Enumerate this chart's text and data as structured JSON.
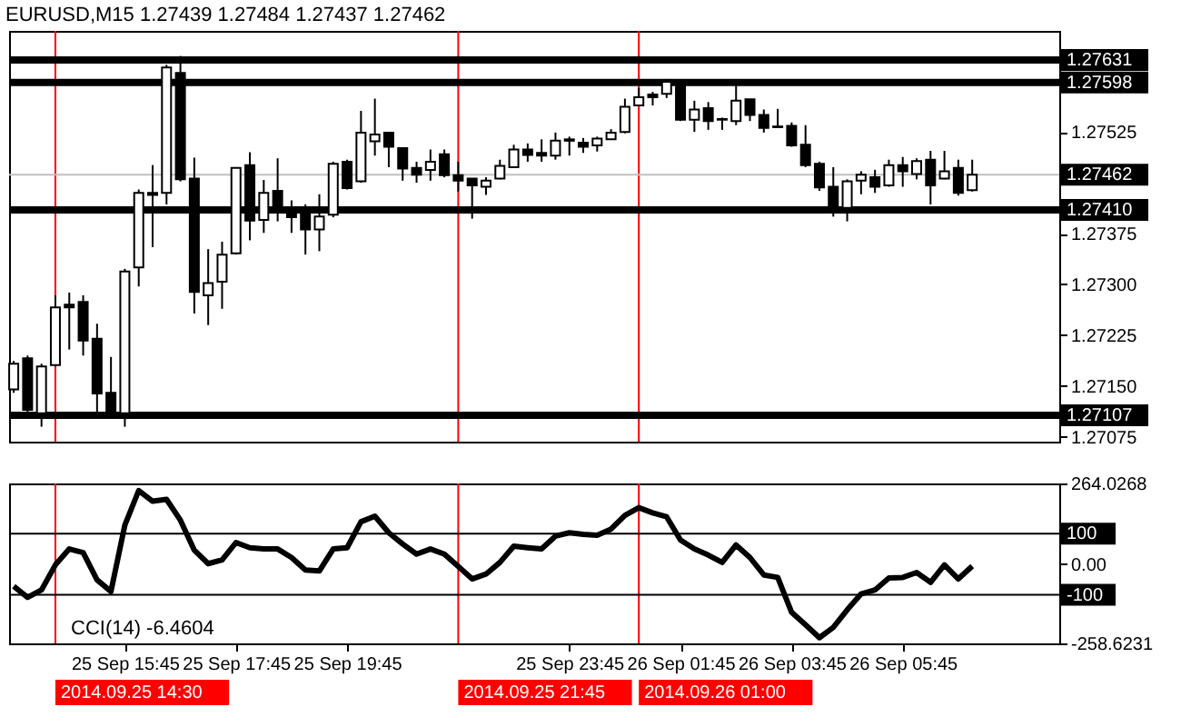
{
  "chart_data": [
    {
      "type": "candlestick",
      "title": "EURUSD,M15  1.27439 1.27484 1.27437 1.27462",
      "x": [
        "2014-09-25T13:45",
        "2014-09-25T14:00",
        "2014-09-25T14:15",
        "2014-09-25T14:30",
        "2014-09-25T14:45",
        "2014-09-25T15:00",
        "2014-09-25T15:15",
        "2014-09-25T15:30",
        "2014-09-25T15:45",
        "2014-09-25T16:00",
        "2014-09-25T16:15",
        "2014-09-25T16:30",
        "2014-09-25T16:45",
        "2014-09-25T17:00",
        "2014-09-25T17:15",
        "2014-09-25T17:30",
        "2014-09-25T17:45",
        "2014-09-25T18:00",
        "2014-09-25T18:15",
        "2014-09-25T18:30",
        "2014-09-25T18:45",
        "2014-09-25T19:00",
        "2014-09-25T19:15",
        "2014-09-25T19:30",
        "2014-09-25T19:45",
        "2014-09-25T20:00",
        "2014-09-25T20:15",
        "2014-09-25T20:30",
        "2014-09-25T20:45",
        "2014-09-25T21:00",
        "2014-09-25T21:15",
        "2014-09-25T21:30",
        "2014-09-25T21:45",
        "2014-09-25T22:00",
        "2014-09-25T22:15",
        "2014-09-25T22:30",
        "2014-09-25T22:45",
        "2014-09-25T23:00",
        "2014-09-25T23:15",
        "2014-09-25T23:30",
        "2014-09-25T23:45",
        "2014-09-26T00:00",
        "2014-09-26T00:15",
        "2014-09-26T00:30",
        "2014-09-26T00:45",
        "2014-09-26T01:00",
        "2014-09-26T01:15",
        "2014-09-26T01:30",
        "2014-09-26T01:45",
        "2014-09-26T02:00",
        "2014-09-26T02:15",
        "2014-09-26T02:30",
        "2014-09-26T02:45",
        "2014-09-26T03:00",
        "2014-09-26T03:15",
        "2014-09-26T03:30",
        "2014-09-26T03:45",
        "2014-09-26T04:00",
        "2014-09-26T04:15",
        "2014-09-26T04:30",
        "2014-09-26T04:45",
        "2014-09-26T05:00",
        "2014-09-26T05:15",
        "2014-09-26T05:30",
        "2014-09-26T05:45",
        "2014-09-26T06:00",
        "2014-09-26T06:15",
        "2014-09-26T06:30",
        "2014-09-26T06:45",
        "2014-09-26T07:00"
      ],
      "ohlc": [
        [
          1.27145,
          1.27187,
          1.2714,
          1.27183
        ],
        [
          1.27191,
          1.27195,
          1.27111,
          1.27115
        ],
        [
          1.2711,
          1.27183,
          1.2709,
          1.27179
        ],
        [
          1.27181,
          1.27284,
          1.27179,
          1.27266
        ],
        [
          1.2727,
          1.27288,
          1.27204,
          1.27266
        ],
        [
          1.27274,
          1.27284,
          1.27195,
          1.27217
        ],
        [
          1.2722,
          1.27242,
          1.27111,
          1.27139
        ],
        [
          1.2714,
          1.27193,
          1.27108,
          1.2711
        ],
        [
          1.2711,
          1.27323,
          1.2709,
          1.27319
        ],
        [
          1.27325,
          1.2744,
          1.27297,
          1.27435
        ],
        [
          1.27435,
          1.27476,
          1.27355,
          1.27432
        ],
        [
          1.27435,
          1.27624,
          1.27418,
          1.2762
        ],
        [
          1.27612,
          1.27637,
          1.27452,
          1.27455
        ],
        [
          1.27456,
          1.27487,
          1.27257,
          1.27289
        ],
        [
          1.27284,
          1.27352,
          1.2724,
          1.27302
        ],
        [
          1.27304,
          1.27363,
          1.27264,
          1.27344
        ],
        [
          1.27346,
          1.27473,
          1.27344,
          1.27472
        ],
        [
          1.27476,
          1.27495,
          1.27365,
          1.27394
        ],
        [
          1.27395,
          1.27454,
          1.27376,
          1.27435
        ],
        [
          1.27438,
          1.27486,
          1.27393,
          1.27414
        ],
        [
          1.27405,
          1.27424,
          1.27376,
          1.27399
        ],
        [
          1.27405,
          1.27418,
          1.27344,
          1.27381
        ],
        [
          1.27381,
          1.27433,
          1.27349,
          1.274
        ],
        [
          1.27403,
          1.27481,
          1.27399,
          1.27478
        ],
        [
          1.27481,
          1.27484,
          1.2744,
          1.27442
        ],
        [
          1.27452,
          1.27556,
          1.2745,
          1.27524
        ],
        [
          1.27511,
          1.27574,
          1.2749,
          1.27521
        ],
        [
          1.27524,
          1.27524,
          1.27473,
          1.27503
        ],
        [
          1.27501,
          1.27501,
          1.27453,
          1.27471
        ],
        [
          1.27472,
          1.27481,
          1.2745,
          1.27462
        ],
        [
          1.27469,
          1.27499,
          1.27453,
          1.27481
        ],
        [
          1.27492,
          1.27499,
          1.27458,
          1.27461
        ],
        [
          1.27461,
          1.27481,
          1.27437,
          1.27453
        ],
        [
          1.27456,
          1.27456,
          1.27397,
          1.27446
        ],
        [
          1.27444,
          1.27458,
          1.27432,
          1.27453
        ],
        [
          1.27456,
          1.27484,
          1.27455,
          1.27475
        ],
        [
          1.27473,
          1.27506,
          1.27472,
          1.27499
        ],
        [
          1.27499,
          1.27508,
          1.27481,
          1.27491
        ],
        [
          1.27494,
          1.27514,
          1.27481,
          1.2749
        ],
        [
          1.2749,
          1.27524,
          1.27484,
          1.27512
        ],
        [
          1.27512,
          1.27518,
          1.2749,
          1.27514
        ],
        [
          1.27509,
          1.27516,
          1.27494,
          1.27503
        ],
        [
          1.27505,
          1.27518,
          1.27496,
          1.27515
        ],
        [
          1.27514,
          1.27529,
          1.27514,
          1.27524
        ],
        [
          1.27525,
          1.27574,
          1.27523,
          1.27562
        ],
        [
          1.27564,
          1.2759,
          1.27564,
          1.27576
        ],
        [
          1.2758,
          1.27584,
          1.27564,
          1.27576
        ],
        [
          1.27581,
          1.27603,
          1.27575,
          1.27599
        ],
        [
          1.27594,
          1.27594,
          1.27541,
          1.27543
        ],
        [
          1.27543,
          1.27571,
          1.27525,
          1.27558
        ],
        [
          1.2756,
          1.27569,
          1.27528,
          1.27541
        ],
        [
          1.27544,
          1.27546,
          1.27528,
          1.27543
        ],
        [
          1.27541,
          1.27594,
          1.27535,
          1.27571
        ],
        [
          1.27573,
          1.27573,
          1.27541,
          1.2755
        ],
        [
          1.2755,
          1.27558,
          1.27524,
          1.27531
        ],
        [
          1.27533,
          1.27559,
          1.27532,
          1.27532
        ],
        [
          1.27534,
          1.27539,
          1.27503,
          1.27505
        ],
        [
          1.27506,
          1.27535,
          1.27473,
          1.27476
        ],
        [
          1.27478,
          1.27481,
          1.27438,
          1.27443
        ],
        [
          1.27444,
          1.27473,
          1.274,
          1.27413
        ],
        [
          1.27413,
          1.27455,
          1.27393,
          1.27452
        ],
        [
          1.27453,
          1.27467,
          1.27433,
          1.27462
        ],
        [
          1.27458,
          1.27469,
          1.27435,
          1.27444
        ],
        [
          1.27446,
          1.27484,
          1.27444,
          1.27476
        ],
        [
          1.27476,
          1.27488,
          1.27444,
          1.27467
        ],
        [
          1.27463,
          1.27486,
          1.27455,
          1.27482
        ],
        [
          1.27484,
          1.27497,
          1.27418,
          1.27446
        ],
        [
          1.27456,
          1.27497,
          1.27455,
          1.27467
        ],
        [
          1.27472,
          1.27484,
          1.27431,
          1.27435
        ],
        [
          1.27439,
          1.27484,
          1.27437,
          1.27462
        ]
      ],
      "xlim": [
        "2014-09-25T13:40",
        "2014-09-26T08:34"
      ],
      "ylim": [
        1.27068,
        1.27674
      ],
      "yticks": [
        1.27525,
        1.27375,
        {
          "value": 1.273,
          "label": "1.27300"
        },
        1.27225,
        {
          "value": 1.2715,
          "label": "1.27150"
        },
        1.27075
      ],
      "tick_labels": "y",
      "ref_lines": [
        {
          "axis": "y",
          "value": 1.27631,
          "label": "1.27631",
          "color": "#000000"
        },
        {
          "axis": "y",
          "value": 1.27598,
          "label": "1.27598",
          "color": "#000000"
        },
        {
          "axis": "y",
          "value": 1.27462,
          "label": "1.27462",
          "color": "#c0c0c0"
        },
        {
          "axis": "y",
          "value": 1.2741,
          "label": "1.27410",
          "color": "#000000"
        },
        {
          "axis": "y",
          "value": 1.27107,
          "label": "1.27107",
          "color": "#000000"
        },
        {
          "axis": "x",
          "value": "2014-09-25T14:30",
          "color": "#ff0000"
        },
        {
          "axis": "x",
          "value": "2014-09-25T21:45",
          "color": "#ff0000"
        },
        {
          "axis": "x",
          "value": "2014-09-26T01:00",
          "color": "#ff0000"
        }
      ]
    },
    {
      "type": "line",
      "title": "CCI(14) -6.4604",
      "x": [
        "2014-09-25T13:45",
        "2014-09-25T14:00",
        "2014-09-25T14:15",
        "2014-09-25T14:30",
        "2014-09-25T14:45",
        "2014-09-25T15:00",
        "2014-09-25T15:15",
        "2014-09-25T15:30",
        "2014-09-25T15:45",
        "2014-09-25T16:00",
        "2014-09-25T16:15",
        "2014-09-25T16:30",
        "2014-09-25T16:45",
        "2014-09-25T17:00",
        "2014-09-25T17:15",
        "2014-09-25T17:30",
        "2014-09-25T17:45",
        "2014-09-25T18:00",
        "2014-09-25T18:15",
        "2014-09-25T18:30",
        "2014-09-25T18:45",
        "2014-09-25T19:00",
        "2014-09-25T19:15",
        "2014-09-25T19:30",
        "2014-09-25T19:45",
        "2014-09-25T20:00",
        "2014-09-25T20:15",
        "2014-09-25T20:30",
        "2014-09-25T20:45",
        "2014-09-25T21:00",
        "2014-09-25T21:15",
        "2014-09-25T21:30",
        "2014-09-25T21:45",
        "2014-09-25T22:00",
        "2014-09-25T22:15",
        "2014-09-25T22:30",
        "2014-09-25T22:45",
        "2014-09-25T23:00",
        "2014-09-25T23:15",
        "2014-09-25T23:30",
        "2014-09-25T23:45",
        "2014-09-26T00:00",
        "2014-09-26T00:15",
        "2014-09-26T00:30",
        "2014-09-26T00:45",
        "2014-09-26T01:00",
        "2014-09-26T01:15",
        "2014-09-26T01:30",
        "2014-09-26T01:45",
        "2014-09-26T02:00",
        "2014-09-26T02:15",
        "2014-09-26T02:30",
        "2014-09-26T02:45",
        "2014-09-26T03:00",
        "2014-09-26T03:15",
        "2014-09-26T03:30",
        "2014-09-26T03:45",
        "2014-09-26T04:00",
        "2014-09-26T04:15",
        "2014-09-26T04:30",
        "2014-09-26T04:45",
        "2014-09-26T05:00",
        "2014-09-26T05:15",
        "2014-09-26T05:30",
        "2014-09-26T05:45",
        "2014-09-26T06:00",
        "2014-09-26T06:15",
        "2014-09-26T06:30",
        "2014-09-26T06:45",
        "2014-09-26T07:00"
      ],
      "series": [
        {
          "color": "#000000",
          "values": [
            -72,
            -108,
            -84,
            -2,
            50,
            38,
            -51,
            -89,
            128,
            241,
            206,
            212,
            144,
            46,
            2,
            14,
            71,
            54,
            50,
            50,
            22,
            -19,
            -22,
            50,
            54,
            139,
            157,
            103,
            66,
            33,
            50,
            33,
            -7,
            -48,
            -32,
            6,
            59,
            54,
            50,
            92,
            103,
            98,
            95,
            115,
            160,
            185,
            168,
            155,
            79,
            50,
            30,
            6,
            63,
            22,
            -35,
            -43,
            -157,
            -198,
            -240,
            -206,
            -149,
            -97,
            -84,
            -45,
            -43,
            -27,
            -59,
            -2,
            -48,
            -6.4604
          ]
        }
      ],
      "xlim": [
        "2014-09-25T13:40",
        "2014-09-26T08:34"
      ],
      "ylim": [
        -258.6231,
        264.0268
      ],
      "yticks": [
        264.0268,
        {
          "value": 0,
          "label": "0.00"
        },
        -258.6231
      ],
      "xticks": [
        {
          "value": "2014-09-25T15:45",
          "label": "25 Sep 15:45"
        },
        {
          "value": "2014-09-25T17:45",
          "label": "25 Sep 17:45"
        },
        {
          "value": "2014-09-25T19:45",
          "label": "25 Sep 19:45"
        },
        {
          "value": "2014-09-25T23:45",
          "label": "25 Sep 23:45"
        },
        {
          "value": "2014-09-26T01:45",
          "label": "26 Sep 01:45"
        },
        {
          "value": "2014-09-26T03:45",
          "label": "26 Sep 03:45"
        },
        {
          "value": "2014-09-26T05:45",
          "label": "26 Sep 05:45"
        }
      ],
      "ref_lines": [
        {
          "axis": "y",
          "value": 100,
          "label": "100",
          "color": "#000000"
        },
        {
          "axis": "y",
          "value": -100,
          "label": "-100",
          "color": "#000000"
        },
        {
          "axis": "x",
          "value": "2014-09-25T14:30",
          "label": "2014.09.25 14:30",
          "color": "#ff0000"
        },
        {
          "axis": "x",
          "value": "2014-09-25T21:45",
          "label": "2014.09.25 21:45",
          "color": "#ff0000"
        },
        {
          "axis": "x",
          "value": "2014-09-26T01:00",
          "label": "2014.09.26 01:00",
          "color": "#ff0000"
        }
      ]
    }
  ]
}
